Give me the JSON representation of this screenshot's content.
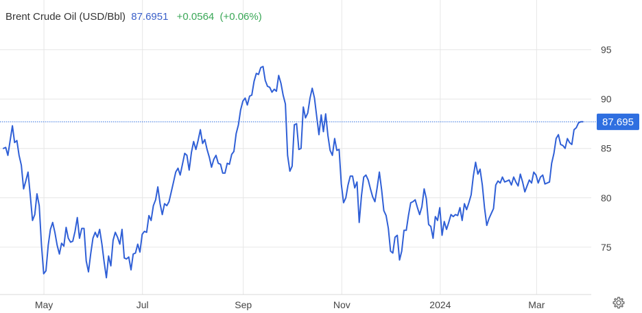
{
  "header": {
    "name": "Brent Crude Oil (USD/Bbl)",
    "price": "87.6951",
    "change": "+0.0564",
    "change_pct": "(+0.06%)"
  },
  "last_price_label": "87.695",
  "colors": {
    "line": "#2f5fd6",
    "price_text": "#3a5fc8",
    "change_text": "#3aa757",
    "badge": "#2f6fe0",
    "grid": "#e6e6e6"
  },
  "icons": {
    "settings": "gear-icon"
  },
  "chart_data": {
    "type": "line",
    "ylim": [
      70.2,
      99
    ],
    "xlim": [
      0,
      296
    ],
    "grid": true,
    "y_ticks": [
      75,
      80,
      85,
      90,
      95
    ],
    "x_ticks": [
      {
        "label": "May",
        "x": 20.7
      },
      {
        "label": "Jul",
        "x": 71
      },
      {
        "label": "Sep",
        "x": 122.5
      },
      {
        "label": "Nov",
        "x": 172.8
      },
      {
        "label": "2024",
        "x": 223.1
      },
      {
        "label": "Mar",
        "x": 272.3
      }
    ],
    "series": [
      {
        "values": [
          85,
          85.1,
          84.3,
          85.8,
          87.3,
          85.6,
          85.8,
          84.3,
          83.3,
          80.9,
          81.7,
          82.6,
          80.2,
          77.7,
          78.3,
          80.4,
          79.2,
          75.2,
          72.3,
          72.6,
          75.2,
          76.8,
          77.5,
          76.5,
          75.2,
          74.3,
          75.4,
          75.1,
          77,
          75.9,
          75.5,
          75.6,
          76.6,
          78,
          75.9,
          76.9,
          76.9,
          73.6,
          72.5,
          74.3,
          75.9,
          76.5,
          76,
          76.8,
          75.3,
          73.5,
          71.9,
          74.1,
          73.1,
          75.7,
          76.5,
          76,
          75.3,
          76.8,
          73.9,
          73.8,
          74,
          72.7,
          74.3,
          74.4,
          75.3,
          74.5,
          76.3,
          76.6,
          76.5,
          78.2,
          77.7,
          79.2,
          79.8,
          81.1,
          79.4,
          78.3,
          79.4,
          79.2,
          79.6,
          80.6,
          81.6,
          82.6,
          83,
          82.3,
          83.4,
          84.5,
          84.3,
          82.8,
          84.6,
          85.7,
          84.9,
          85.8,
          86.9,
          85.5,
          85.9,
          84.9,
          84.1,
          83.1,
          83.9,
          84.3,
          83.5,
          83.4,
          82.5,
          82.5,
          83.5,
          83.4,
          84.4,
          84.7,
          86.5,
          87.4,
          88.9,
          89.8,
          90.1,
          89.4,
          90.3,
          90.4,
          91.8,
          92.6,
          92.5,
          93.2,
          93.3,
          91.9,
          91.3,
          91.2,
          90.7,
          91,
          90.8,
          92.4,
          91.6,
          90.4,
          89.5,
          84.3,
          82.7,
          83.2,
          87.4,
          87.5,
          84.9,
          85,
          89.2,
          88.1,
          88.6,
          90.1,
          91.1,
          90.1,
          88.2,
          86.4,
          88.4,
          86.7,
          88.5,
          86.3,
          84.8,
          84.3,
          86,
          84.8,
          84.9,
          81.4,
          79.5,
          80,
          81.3,
          82.2,
          82.2,
          81,
          81.6,
          77.5,
          80.2,
          82.1,
          82.3,
          81.8,
          80.9,
          80.1,
          79.6,
          81,
          82.6,
          80.8,
          78.7,
          78.2,
          76.9,
          74.6,
          74.4,
          76,
          76.2,
          73.7,
          74.6,
          76.7,
          76.7,
          78.2,
          79.5,
          79.6,
          79.8,
          79,
          78.3,
          79.1,
          80.9,
          79.9,
          77.3,
          77.1,
          75.9,
          78.1,
          77.7,
          79,
          76.2,
          77.6,
          76.8,
          77.5,
          78.3,
          78.1,
          78.3,
          78.2,
          79,
          77.7,
          79.4,
          78.8,
          79.5,
          80.3,
          82.2,
          83.6,
          82.4,
          82.9,
          81.3,
          79,
          77.2,
          77.9,
          78.4,
          78.9,
          81.3,
          81.7,
          81.5,
          82.1,
          81.6,
          81.7,
          81.8,
          81.3,
          82.1,
          81.6,
          81.2,
          82.4,
          81.6,
          80.6,
          81.2,
          81.8,
          81.5,
          82.6,
          82.3,
          81.5,
          82.1,
          82.3,
          81.4,
          81.5,
          81.6,
          83.5,
          84.5,
          86,
          86.4,
          85.4,
          85.3,
          85,
          86,
          85.6,
          85.4,
          86.9,
          87.1,
          87.6,
          87.7,
          87.7
        ]
      }
    ]
  }
}
